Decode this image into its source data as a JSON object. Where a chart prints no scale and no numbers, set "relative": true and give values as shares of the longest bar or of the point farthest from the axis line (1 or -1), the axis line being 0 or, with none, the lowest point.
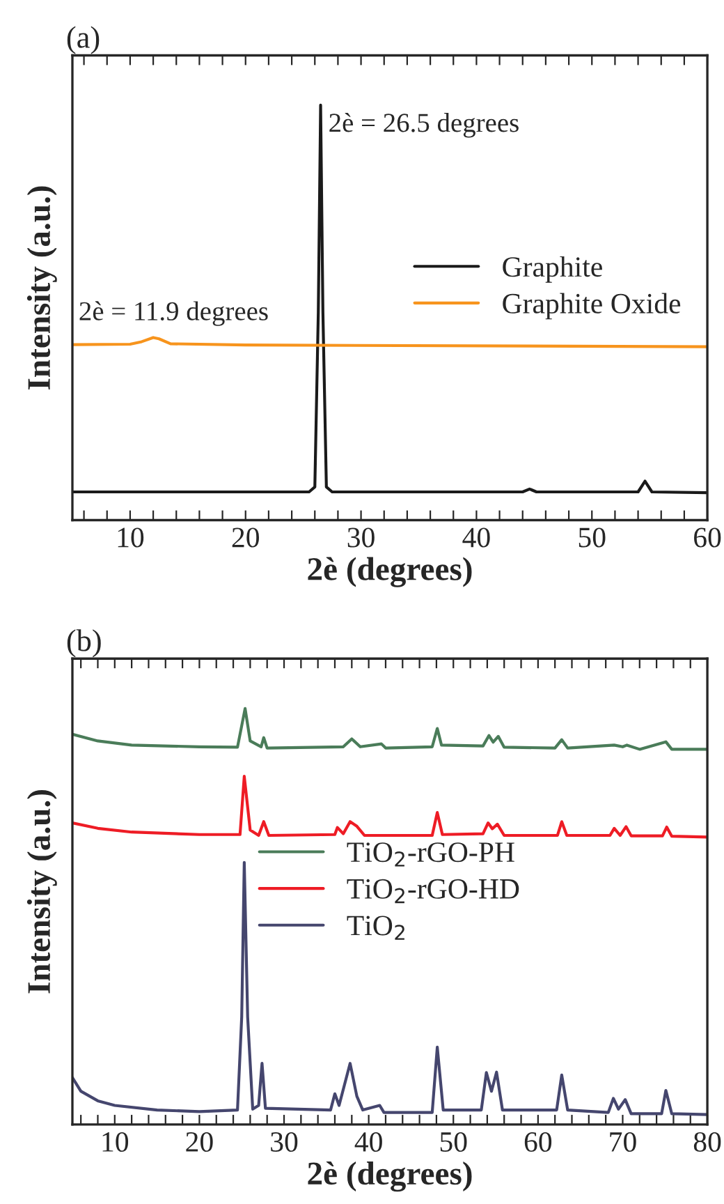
{
  "chart_data": [
    {
      "type": "line",
      "title": "(a)",
      "xlabel": "2è (degrees)",
      "ylabel": "Intensity (a.u.)",
      "relative": true,
      "legend": "right",
      "xlim": [
        5,
        60
      ],
      "xticks": [
        {
          "value": 6,
          "label": null
        },
        {
          "value": 8,
          "label": null
        },
        10,
        {
          "value": 12,
          "label": null
        },
        {
          "value": 14,
          "label": null
        },
        {
          "value": 16,
          "label": null
        },
        {
          "value": 18,
          "label": null
        },
        20,
        {
          "value": 22,
          "label": null
        },
        {
          "value": 24,
          "label": null
        },
        {
          "value": 26,
          "label": null
        },
        {
          "value": 28,
          "label": null
        },
        30,
        {
          "value": 32,
          "label": null
        },
        {
          "value": 34,
          "label": null
        },
        {
          "value": 36,
          "label": null
        },
        {
          "value": 38,
          "label": null
        },
        40,
        {
          "value": 42,
          "label": null
        },
        {
          "value": 44,
          "label": null
        },
        {
          "value": 46,
          "label": null
        },
        {
          "value": 48,
          "label": null
        },
        50,
        {
          "value": 52,
          "label": null
        },
        {
          "value": 54,
          "label": null
        },
        {
          "value": 56,
          "label": null
        },
        {
          "value": 58,
          "label": null
        },
        60
      ],
      "annotations": [
        {
          "text": "2è = 26.5 degrees",
          "x": 26.5,
          "y": 1.0
        },
        {
          "text": "2è = 11.9 degrees",
          "x": 11.9,
          "y": 0.44
        }
      ],
      "series": [
        {
          "name": "Graphite",
          "color": "#1a1a1a",
          "x": [
            5,
            25.5,
            26.0,
            26.3,
            26.5,
            26.7,
            27.0,
            27.5,
            44.0,
            44.6,
            45.2,
            54.0,
            54.6,
            55.2,
            60
          ],
          "values": [
            0.068,
            0.068,
            0.08,
            0.5,
            1.0,
            0.5,
            0.08,
            0.068,
            0.068,
            0.075,
            0.068,
            0.068,
            0.094,
            0.068,
            0.066
          ]
        },
        {
          "name": "Graphite Oxide",
          "color": "#f7941d",
          "x": [
            5,
            10,
            11,
            12,
            12.5,
            13.5,
            20,
            60
          ],
          "values": [
            0.423,
            0.424,
            0.43,
            0.44,
            0.437,
            0.425,
            0.422,
            0.418
          ]
        }
      ]
    },
    {
      "type": "line",
      "title": "(b)",
      "xlabel": "2è (degrees)",
      "ylabel": "Intensity (a.u.)",
      "relative": true,
      "legend": "center",
      "xlim": [
        5,
        80
      ],
      "xticks": [
        {
          "value": 6,
          "label": null
        },
        {
          "value": 8,
          "label": null
        },
        10,
        {
          "value": 12,
          "label": null
        },
        {
          "value": 14,
          "label": null
        },
        {
          "value": 16,
          "label": null
        },
        {
          "value": 18,
          "label": null
        },
        20,
        {
          "value": 22,
          "label": null
        },
        {
          "value": 24,
          "label": null
        },
        {
          "value": 26,
          "label": null
        },
        {
          "value": 28,
          "label": null
        },
        30,
        {
          "value": 32,
          "label": null
        },
        {
          "value": 34,
          "label": null
        },
        {
          "value": 36,
          "label": null
        },
        {
          "value": 38,
          "label": null
        },
        40,
        {
          "value": 42,
          "label": null
        },
        {
          "value": 44,
          "label": null
        },
        {
          "value": 46,
          "label": null
        },
        {
          "value": 48,
          "label": null
        },
        50,
        {
          "value": 52,
          "label": null
        },
        {
          "value": 54,
          "label": null
        },
        {
          "value": 56,
          "label": null
        },
        {
          "value": 58,
          "label": null
        },
        60,
        {
          "value": 62,
          "label": null
        },
        {
          "value": 64,
          "label": null
        },
        {
          "value": 66,
          "label": null
        },
        {
          "value": 68,
          "label": null
        },
        70,
        {
          "value": 72,
          "label": null
        },
        {
          "value": 74,
          "label": null
        },
        {
          "value": 76,
          "label": null
        },
        {
          "value": 78,
          "label": null
        },
        80
      ],
      "series": [
        {
          "name": "TiO$_{2}$-rGO-PH",
          "color": "#4a7c59",
          "x": [
            5,
            8,
            12,
            20,
            24.5,
            25.4,
            26,
            27.3,
            27.6,
            28,
            37,
            38,
            39,
            41.5,
            42,
            47.5,
            48.1,
            48.6,
            53.5,
            54.2,
            54.7,
            55.3,
            56,
            62,
            62.8,
            63.5,
            69,
            70,
            70.5,
            72,
            75.1,
            75.8,
            80
          ],
          "values": [
            0.938,
            0.922,
            0.912,
            0.908,
            0.907,
            1.0,
            0.922,
            0.908,
            0.93,
            0.905,
            0.908,
            0.927,
            0.908,
            0.915,
            0.905,
            0.908,
            0.952,
            0.912,
            0.91,
            0.935,
            0.919,
            0.933,
            0.907,
            0.905,
            0.925,
            0.905,
            0.912,
            0.908,
            0.912,
            0.902,
            0.92,
            0.902,
            0.902
          ]
        },
        {
          "name": "TiO$_{2}$-rGO-HD",
          "color": "#ee1c25",
          "x": [
            5,
            8,
            12,
            20,
            24.8,
            25.3,
            26,
            27,
            27.6,
            28.2,
            36,
            36.3,
            37,
            37.8,
            38.6,
            39.5,
            47.5,
            48.1,
            48.7,
            53.5,
            54.1,
            54.6,
            55.2,
            56,
            62.3,
            62.8,
            63.4,
            68.5,
            69,
            69.7,
            70.4,
            71,
            74.7,
            75.2,
            75.8,
            80
          ],
          "values": [
            0.725,
            0.712,
            0.703,
            0.697,
            0.697,
            0.837,
            0.708,
            0.695,
            0.728,
            0.695,
            0.697,
            0.714,
            0.699,
            0.728,
            0.717,
            0.695,
            0.695,
            0.75,
            0.697,
            0.699,
            0.725,
            0.711,
            0.722,
            0.695,
            0.695,
            0.728,
            0.695,
            0.695,
            0.712,
            0.695,
            0.716,
            0.694,
            0.694,
            0.715,
            0.693,
            0.691
          ]
        },
        {
          "name": "TiO$_{2}$",
          "color": "#45466e",
          "x": [
            5,
            6,
            8,
            10,
            15,
            20,
            24.5,
            25.0,
            25.3,
            25.7,
            26.3,
            27.0,
            27.4,
            27.8,
            35.5,
            36.0,
            36.5,
            37.8,
            38.6,
            39.3,
            41.3,
            41.8,
            47.5,
            48.1,
            48.8,
            53.3,
            53.9,
            54.5,
            55.1,
            55.8,
            62.2,
            62.8,
            63.5,
            68.3,
            68.9,
            69.5,
            70.3,
            71,
            74.6,
            75.1,
            75.8,
            80
          ],
          "values": [
            0.113,
            0.08,
            0.057,
            0.046,
            0.035,
            0.031,
            0.035,
            0.259,
            0.63,
            0.259,
            0.037,
            0.046,
            0.147,
            0.039,
            0.035,
            0.074,
            0.046,
            0.147,
            0.068,
            0.035,
            0.046,
            0.029,
            0.029,
            0.186,
            0.035,
            0.035,
            0.125,
            0.08,
            0.126,
            0.035,
            0.035,
            0.119,
            0.035,
            0.029,
            0.063,
            0.037,
            0.06,
            0.026,
            0.026,
            0.082,
            0.026,
            0.024
          ]
        }
      ]
    }
  ]
}
